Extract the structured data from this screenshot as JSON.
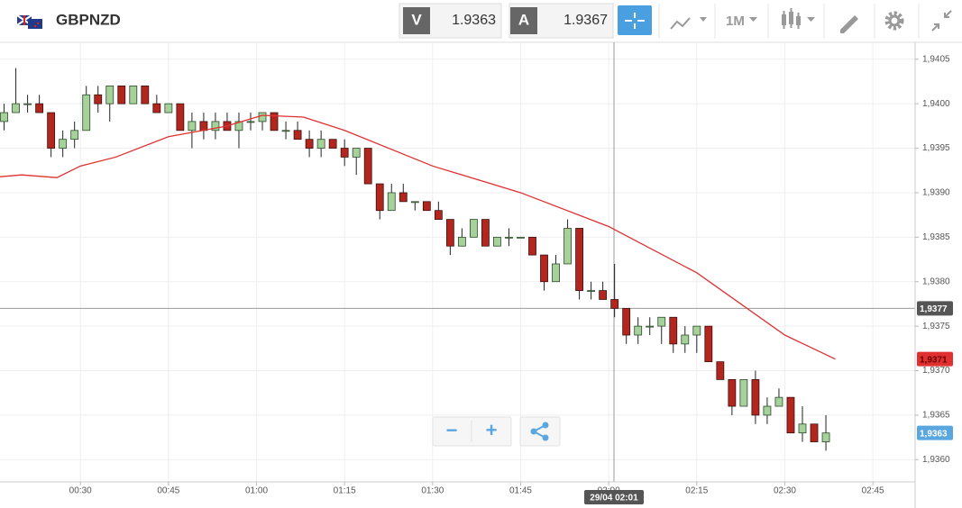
{
  "header": {
    "symbol": "GBPNZD",
    "bid_label": "V",
    "bid": 1.9363,
    "ask_label": "A",
    "ask": 1.9367,
    "timeframe": "1M"
  },
  "controls": {
    "zoom_out": "−",
    "zoom_in": "+"
  },
  "chart_data": {
    "type": "candlestick",
    "up_color": "#a6d19b",
    "down_color": "#b3261e",
    "x": [
      17,
      19,
      21,
      23,
      25,
      27,
      29,
      31,
      33,
      35,
      37,
      39,
      41,
      43,
      45,
      47,
      49,
      51,
      53,
      55,
      57,
      59,
      61,
      63,
      65,
      67,
      69,
      71,
      73,
      75,
      77,
      79,
      81,
      83,
      85,
      87,
      89,
      91,
      93,
      95,
      97,
      99,
      101,
      103,
      105,
      107,
      109,
      111,
      113,
      115,
      117,
      119,
      121,
      123,
      125,
      127,
      129,
      131,
      133,
      135,
      137,
      139,
      141,
      143,
      145,
      147,
      149,
      151,
      153,
      155,
      157
    ],
    "open": [
      1.9398,
      1.9399,
      1.94,
      1.94,
      1.9399,
      1.9395,
      1.9396,
      1.9397,
      1.9401,
      1.94,
      1.9402,
      1.94,
      1.9402,
      1.94,
      1.9399,
      1.94,
      1.9397,
      1.9398,
      1.9397,
      1.9398,
      1.9397,
      1.9398,
      1.9398,
      1.9399,
      1.9397,
      1.9397,
      1.9396,
      1.9395,
      1.9396,
      1.9395,
      1.9394,
      1.9395,
      1.9391,
      1.9388,
      1.939,
      1.9389,
      1.9389,
      1.9388,
      1.9387,
      1.9384,
      1.9385,
      1.9387,
      1.9384,
      1.9385,
      1.9385,
      1.9385,
      1.9383,
      1.938,
      1.9382,
      1.9386,
      1.9379,
      1.9379,
      1.9378,
      1.9377,
      1.9374,
      1.9375,
      1.9375,
      1.9376,
      1.9373,
      1.9374,
      1.9375,
      1.9371,
      1.9369,
      1.9366,
      1.9369,
      1.9365,
      1.9366,
      1.9367,
      1.9363,
      1.9364,
      1.9362
    ],
    "high": [
      1.94,
      1.9404,
      1.9401,
      1.9401,
      1.9399,
      1.9397,
      1.9398,
      1.9402,
      1.9402,
      1.9402,
      1.9402,
      1.9402,
      1.9402,
      1.9401,
      1.94,
      1.94,
      1.9399,
      1.9399,
      1.9399,
      1.9399,
      1.9399,
      1.9399,
      1.9399,
      1.9399,
      1.9398,
      1.9398,
      1.9397,
      1.9397,
      1.9396,
      1.9396,
      1.9395,
      1.9395,
      1.9391,
      1.9391,
      1.9391,
      1.9389,
      1.9389,
      1.9389,
      1.9387,
      1.9386,
      1.9387,
      1.9387,
      1.9385,
      1.9386,
      1.9385,
      1.9385,
      1.9383,
      1.9383,
      1.9387,
      1.9386,
      1.938,
      1.938,
      1.9382,
      1.9377,
      1.9376,
      1.9376,
      1.9376,
      1.9376,
      1.9375,
      1.9375,
      1.9375,
      1.9371,
      1.9369,
      1.9369,
      1.937,
      1.9367,
      1.9368,
      1.9367,
      1.9366,
      1.9364,
      1.9365
    ],
    "low": [
      1.9397,
      1.9399,
      1.9399,
      1.9399,
      1.9394,
      1.9394,
      1.9395,
      1.9397,
      1.9399,
      1.9398,
      1.94,
      1.94,
      1.94,
      1.9399,
      1.9399,
      1.9397,
      1.9395,
      1.9396,
      1.9396,
      1.9397,
      1.9395,
      1.9397,
      1.9397,
      1.9397,
      1.9396,
      1.9396,
      1.9394,
      1.9394,
      1.9395,
      1.9393,
      1.9392,
      1.9391,
      1.9387,
      1.9388,
      1.9389,
      1.9388,
      1.9388,
      1.9387,
      1.9383,
      1.9384,
      1.9385,
      1.9384,
      1.9384,
      1.9384,
      1.9385,
      1.9383,
      1.9379,
      1.938,
      1.9382,
      1.9378,
      1.9378,
      1.9378,
      1.9376,
      1.9373,
      1.9373,
      1.9374,
      1.9373,
      1.9372,
      1.9372,
      1.9372,
      1.9371,
      1.9369,
      1.9365,
      1.9366,
      1.9364,
      1.9364,
      1.9366,
      1.9363,
      1.9362,
      1.9362,
      1.9361
    ],
    "close": [
      1.9399,
      1.94,
      1.94,
      1.9399,
      1.9395,
      1.9396,
      1.9397,
      1.9401,
      1.94,
      1.9402,
      1.94,
      1.9402,
      1.94,
      1.9399,
      1.94,
      1.9397,
      1.9398,
      1.9397,
      1.9398,
      1.9397,
      1.9398,
      1.9398,
      1.9399,
      1.9397,
      1.9397,
      1.9396,
      1.9395,
      1.9396,
      1.9395,
      1.9394,
      1.9395,
      1.9391,
      1.9388,
      1.939,
      1.9389,
      1.9389,
      1.9388,
      1.9387,
      1.9384,
      1.9385,
      1.9387,
      1.9384,
      1.9385,
      1.9385,
      1.9385,
      1.9383,
      1.938,
      1.9382,
      1.9386,
      1.9379,
      1.9379,
      1.9378,
      1.9377,
      1.9374,
      1.9375,
      1.9375,
      1.9376,
      1.9373,
      1.9374,
      1.9375,
      1.9371,
      1.9369,
      1.9366,
      1.9369,
      1.9365,
      1.9366,
      1.9367,
      1.9363,
      1.9364,
      1.9362,
      1.9363
    ],
    "moving_average": {
      "color": "#e03030",
      "x": [
        16.3,
        20,
        26,
        30,
        36,
        45,
        55,
        61,
        68,
        75,
        90,
        105,
        120,
        135,
        150,
        158.6
      ],
      "values": [
        1.93918,
        1.9392,
        1.93917,
        1.9393,
        1.9394,
        1.93963,
        1.93975,
        1.93987,
        1.93985,
        1.9397,
        1.9393,
        1.939,
        1.93862,
        1.9381,
        1.9374,
        1.93713
      ],
      "last_label": {
        "value": 1.93713,
        "label": "1,9371"
      }
    },
    "last_price": {
      "value": 1.9363,
      "label": "1,9363"
    },
    "crosshair": {
      "price": {
        "value": 1.9377,
        "label": "1,9377"
      },
      "time": {
        "value": 120.9,
        "label": "29/04 02:01"
      }
    },
    "xlim": [
      16.3,
      172.2
    ],
    "xticks": [
      {
        "value": 30,
        "label": "00:30"
      },
      {
        "value": 45,
        "label": "00:45"
      },
      {
        "value": 60,
        "label": "01:00"
      },
      {
        "value": 75,
        "label": "01:15"
      },
      {
        "value": 90,
        "label": "01:30"
      },
      {
        "value": 105,
        "label": "01:45"
      },
      {
        "value": 120,
        "label": "02:00"
      },
      {
        "value": 135,
        "label": "02:15"
      },
      {
        "value": 150,
        "label": "02:30"
      },
      {
        "value": 165,
        "label": "02:45"
      }
    ],
    "ylim": [
      1.93575,
      1.94069
    ],
    "yticks": [
      {
        "value": 1.936,
        "label": "1,9360"
      },
      {
        "value": 1.9365,
        "label": "1,9365"
      },
      {
        "value": 1.937,
        "label": "1,9370"
      },
      {
        "value": 1.9375,
        "label": "1,9375"
      },
      {
        "value": 1.938,
        "label": "1,9380"
      },
      {
        "value": 1.9385,
        "label": "1,9385"
      },
      {
        "value": 1.939,
        "label": "1,9390"
      },
      {
        "value": 1.9395,
        "label": "1,9395"
      },
      {
        "value": 1.94,
        "label": "1,9400"
      },
      {
        "value": 1.9405,
        "label": "1,9405"
      }
    ],
    "grid": true
  }
}
